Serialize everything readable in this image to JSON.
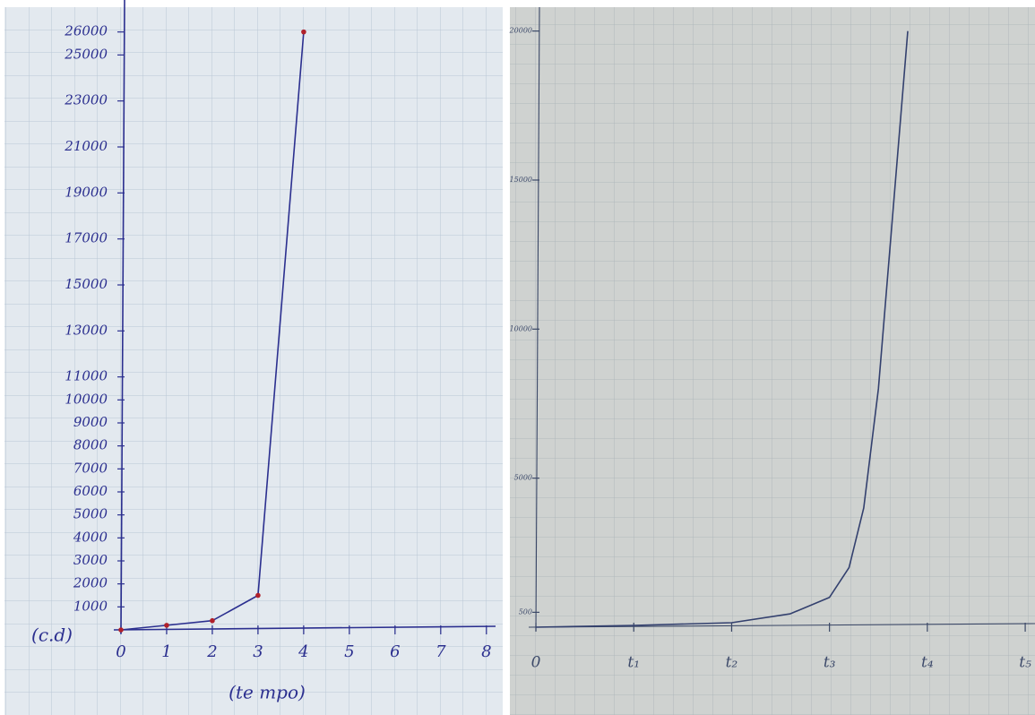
{
  "chart_data": [
    {
      "type": "line",
      "x_label": "(te mpo)",
      "y_label": "(c.d)",
      "color": "#2b2f8f",
      "markers": true,
      "marker_color": "#b0202a",
      "x": [
        0,
        1,
        2,
        3,
        4
      ],
      "values": [
        0,
        200,
        400,
        1500,
        26000
      ],
      "xlim": [
        0,
        8.2
      ],
      "ylim": [
        0,
        27000
      ],
      "xticks": [
        0,
        1,
        2,
        3,
        4,
        5,
        6,
        7,
        8
      ],
      "yticks": [
        1000,
        2000,
        3000,
        4000,
        5000,
        6000,
        7000,
        8000,
        9000,
        10000,
        11000,
        13000,
        15000,
        17000,
        19000,
        21000,
        23000,
        25000,
        26000
      ]
    },
    {
      "type": "line",
      "color": "#33406e",
      "markers": false,
      "x": [
        0,
        1,
        2,
        2.6,
        3,
        3.2,
        3.35,
        3.5,
        3.8
      ],
      "values": [
        0,
        60,
        150,
        450,
        1000,
        2000,
        4000,
        8000,
        20000
      ],
      "xlim": [
        0,
        5.1
      ],
      "ylim": [
        0,
        20500
      ],
      "xticks": [
        0,
        {
          "value": 1,
          "label": "t₁"
        },
        {
          "value": 2,
          "label": "t₂"
        },
        {
          "value": 3,
          "label": "t₃"
        },
        {
          "value": 4,
          "label": "t₄"
        },
        {
          "value": 5,
          "label": "t₅"
        }
      ],
      "yticks": [
        500,
        5000,
        10000,
        15000,
        20000
      ]
    }
  ]
}
